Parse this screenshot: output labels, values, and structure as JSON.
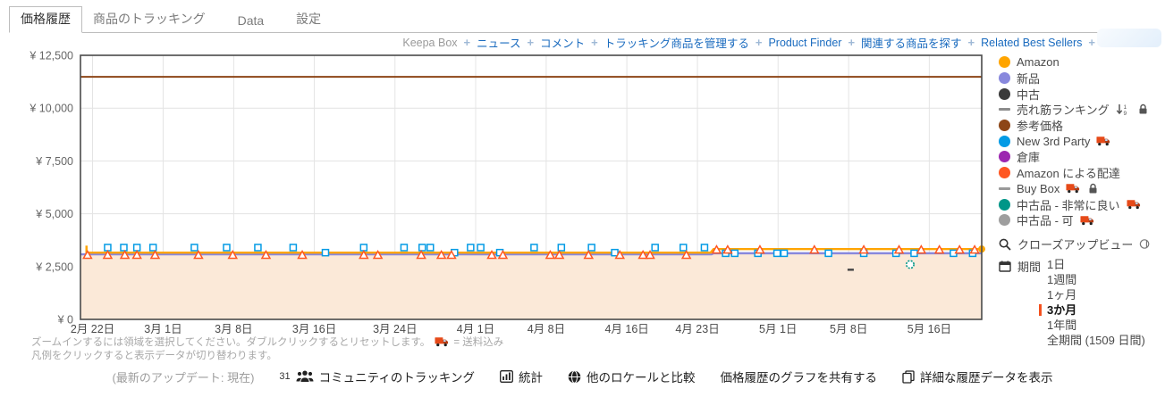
{
  "colors": {
    "link_blue": "#1A6BBF",
    "selected_period_marker": "#F4511E",
    "chart_border": "#4A4A4A",
    "chart_fill": "#FBE9D8"
  },
  "tabs": {
    "items": [
      {
        "label": "価格履歴",
        "active": true
      },
      {
        "label": "商品のトラッキング",
        "active": false
      },
      {
        "label": "Data",
        "active": false
      },
      {
        "label": "設定",
        "active": false
      }
    ]
  },
  "toolbar": {
    "prefix": "Keepa Box",
    "links": [
      "ニュース",
      "コメント",
      "トラッキング商品を管理する",
      "Product Finder",
      "関連する商品を探す",
      "Related Best Sellers"
    ]
  },
  "legend": {
    "items": [
      {
        "label": "Amazon",
        "color": "#FFA500",
        "marker": "dot",
        "truck_icon": false,
        "lock_icon": false,
        "sort_icon": false
      },
      {
        "label": "新品",
        "color": "#8888DD",
        "marker": "dot",
        "truck_icon": false,
        "lock_icon": false,
        "sort_icon": false
      },
      {
        "label": "中古",
        "color": "#3B3B3B",
        "marker": "dot",
        "truck_icon": false,
        "lock_icon": false,
        "sort_icon": false
      },
      {
        "label": "売れ筋ランキング",
        "color": "#8C8C8C",
        "marker": "dash",
        "truck_icon": false,
        "lock_icon": true,
        "sort_icon": true
      },
      {
        "label": "参考価格",
        "color": "#8D4617",
        "marker": "dot",
        "truck_icon": false,
        "lock_icon": false,
        "sort_icon": false
      },
      {
        "label": "New 3rd Party",
        "color": "#039BE5",
        "marker": "dot",
        "truck_icon": true,
        "lock_icon": false,
        "sort_icon": false
      },
      {
        "label": "倉庫",
        "color": "#9C27B0",
        "marker": "dot",
        "truck_icon": false,
        "lock_icon": false,
        "sort_icon": false
      },
      {
        "label": "Amazon による配達",
        "color": "#FF5722",
        "marker": "dot",
        "truck_icon": false,
        "lock_icon": false,
        "sort_icon": false
      },
      {
        "label": "Buy Box",
        "color": "#999999",
        "marker": "dash",
        "truck_icon": true,
        "lock_icon": true,
        "sort_icon": false
      },
      {
        "label": "中古品 - 非常に良い",
        "color": "#009688",
        "marker": "dot",
        "truck_icon": true,
        "lock_icon": false,
        "sort_icon": false
      },
      {
        "label": "中古品 - 可",
        "color": "#9E9E9E",
        "marker": "dot",
        "truck_icon": true,
        "lock_icon": false,
        "sort_icon": false
      }
    ]
  },
  "closeup": {
    "label": "クローズアップビュー"
  },
  "period": {
    "label": "期間",
    "options": [
      {
        "label": "1日",
        "selected": false
      },
      {
        "label": "1週間",
        "selected": false
      },
      {
        "label": "1ヶ月",
        "selected": false
      },
      {
        "label": "3か月",
        "selected": true
      },
      {
        "label": "1年間",
        "selected": false
      },
      {
        "label": "全期間 (1509 日間)",
        "selected": false
      }
    ]
  },
  "notes": {
    "line1": "ズームインするには領域を選択してください。ダブルクリックするとリセットします。",
    "truck_note": "= 送料込み",
    "line2": "凡例をクリックすると表示データが切り替わります。"
  },
  "footer": {
    "update_status": "(最新のアップデート: 現在)",
    "community_count": "31",
    "community": "コミュニティのトラッキング",
    "stats": "統計",
    "locales": "他のロケールと比較",
    "share": "価格履歴のグラフを共有する",
    "details": "詳細な履歴データを表示"
  },
  "chart_data": {
    "type": "line",
    "currency": "¥",
    "ylim": [
      0,
      12500
    ],
    "x_domain_days": [
      -1.2,
      88.2
    ],
    "grid": true,
    "yticks": [
      {
        "value": 0,
        "label": "¥ 0"
      },
      {
        "value": 2500,
        "label": "¥ 2,500"
      },
      {
        "value": 5000,
        "label": "¥ 5,000"
      },
      {
        "value": 7500,
        "label": "¥ 7,500"
      },
      {
        "value": 10000,
        "label": "¥ 10,000"
      },
      {
        "value": 12500,
        "label": "¥ 12,500"
      }
    ],
    "xticks": [
      {
        "day": 0,
        "label": "2月 22日"
      },
      {
        "day": 7,
        "label": "3月 1日"
      },
      {
        "day": 14,
        "label": "3月 8日"
      },
      {
        "day": 22,
        "label": "3月 16日"
      },
      {
        "day": 30,
        "label": "3月 24日"
      },
      {
        "day": 38,
        "label": "4月 1日"
      },
      {
        "day": 45,
        "label": "4月 8日"
      },
      {
        "day": 53,
        "label": "4月 16日"
      },
      {
        "day": 60,
        "label": "4月 23日"
      },
      {
        "day": 68,
        "label": "5月 1日"
      },
      {
        "day": 75,
        "label": "5月 8日"
      },
      {
        "day": 83,
        "label": "5月 16日"
      }
    ],
    "series": [
      {
        "name": "参考価格",
        "color": "#8D4617",
        "width": 2,
        "points": [
          [
            -1.2,
            11480
          ],
          [
            88.2,
            11480
          ]
        ]
      },
      {
        "name": "新品",
        "color": "#8888DD",
        "width": 2.4,
        "fill": "#FBE9D8",
        "points": [
          [
            -1.2,
            3080
          ],
          [
            61.4,
            3080
          ],
          [
            61.6,
            3130
          ],
          [
            88.2,
            3130
          ]
        ]
      },
      {
        "name": "Amazon",
        "color": "#FFA500",
        "width": 2.4,
        "end_dot": true,
        "start_tick": [
          -0.6,
          3280
        ],
        "points": [
          [
            -0.6,
            3160
          ],
          [
            61.3,
            3160
          ],
          [
            61.6,
            3330
          ],
          [
            88.2,
            3330
          ]
        ]
      }
    ],
    "markers": {
      "new_3rd_party": {
        "name": "New 3rd Party",
        "color": "#039BE5",
        "shape": "open-square",
        "points": [
          [
            1.5,
            3400
          ],
          [
            3.1,
            3400
          ],
          [
            4.4,
            3400
          ],
          [
            6,
            3400
          ],
          [
            10.1,
            3400
          ],
          [
            13.3,
            3400
          ],
          [
            16.4,
            3400
          ],
          [
            19.9,
            3400
          ],
          [
            23.1,
            3160
          ],
          [
            26.9,
            3400
          ],
          [
            30.9,
            3400
          ],
          [
            32.7,
            3400
          ],
          [
            33.5,
            3400
          ],
          [
            35.9,
            3160
          ],
          [
            37.5,
            3400
          ],
          [
            38.5,
            3400
          ],
          [
            40.4,
            3160
          ],
          [
            43.8,
            3400
          ],
          [
            46.5,
            3400
          ],
          [
            49.5,
            3400
          ],
          [
            51.8,
            3160
          ],
          [
            55.8,
            3400
          ],
          [
            58.6,
            3400
          ],
          [
            60.7,
            3400
          ],
          [
            62.8,
            3130
          ],
          [
            63.7,
            3130
          ],
          [
            66,
            3130
          ],
          [
            67.9,
            3130
          ],
          [
            68.6,
            3130
          ],
          [
            73,
            3130
          ],
          [
            76.5,
            3130
          ],
          [
            79.7,
            3130
          ],
          [
            81.5,
            3130
          ],
          [
            85.4,
            3130
          ],
          [
            87.3,
            3130
          ]
        ]
      },
      "amazon_delivery": {
        "name": "Amazon による配達",
        "color": "#FF5722",
        "shape": "open-triangle",
        "points": [
          [
            -0.5,
            3040
          ],
          [
            1.5,
            3040
          ],
          [
            3.2,
            3040
          ],
          [
            4.4,
            3040
          ],
          [
            6.2,
            3040
          ],
          [
            10.5,
            3040
          ],
          [
            13.9,
            3040
          ],
          [
            17.2,
            3040
          ],
          [
            20.8,
            3040
          ],
          [
            26.9,
            3040
          ],
          [
            28.3,
            3040
          ],
          [
            32.6,
            3040
          ],
          [
            34.6,
            3040
          ],
          [
            35.6,
            3040
          ],
          [
            39.6,
            3040
          ],
          [
            40.7,
            3040
          ],
          [
            45.4,
            3040
          ],
          [
            46.3,
            3040
          ],
          [
            49.2,
            3040
          ],
          [
            52.3,
            3040
          ],
          [
            54.6,
            3040
          ],
          [
            55.3,
            3040
          ],
          [
            58.9,
            3040
          ],
          [
            61.9,
            3290
          ],
          [
            63,
            3290
          ],
          [
            66.2,
            3290
          ],
          [
            71.6,
            3290
          ],
          [
            76.5,
            3290
          ],
          [
            80,
            3290
          ],
          [
            82.2,
            3290
          ],
          [
            84,
            3290
          ],
          [
            86,
            3290
          ],
          [
            87.5,
            3290
          ]
        ]
      },
      "used_very_good": {
        "name": "中古品 - 非常に良い",
        "color": "#009688",
        "shape": "open-circle-dashed",
        "points": [
          [
            81.1,
            2600
          ]
        ]
      },
      "used": {
        "name": "中古",
        "color": "#444444",
        "shape": "dash",
        "points": [
          [
            75.2,
            2350
          ]
        ]
      }
    }
  }
}
